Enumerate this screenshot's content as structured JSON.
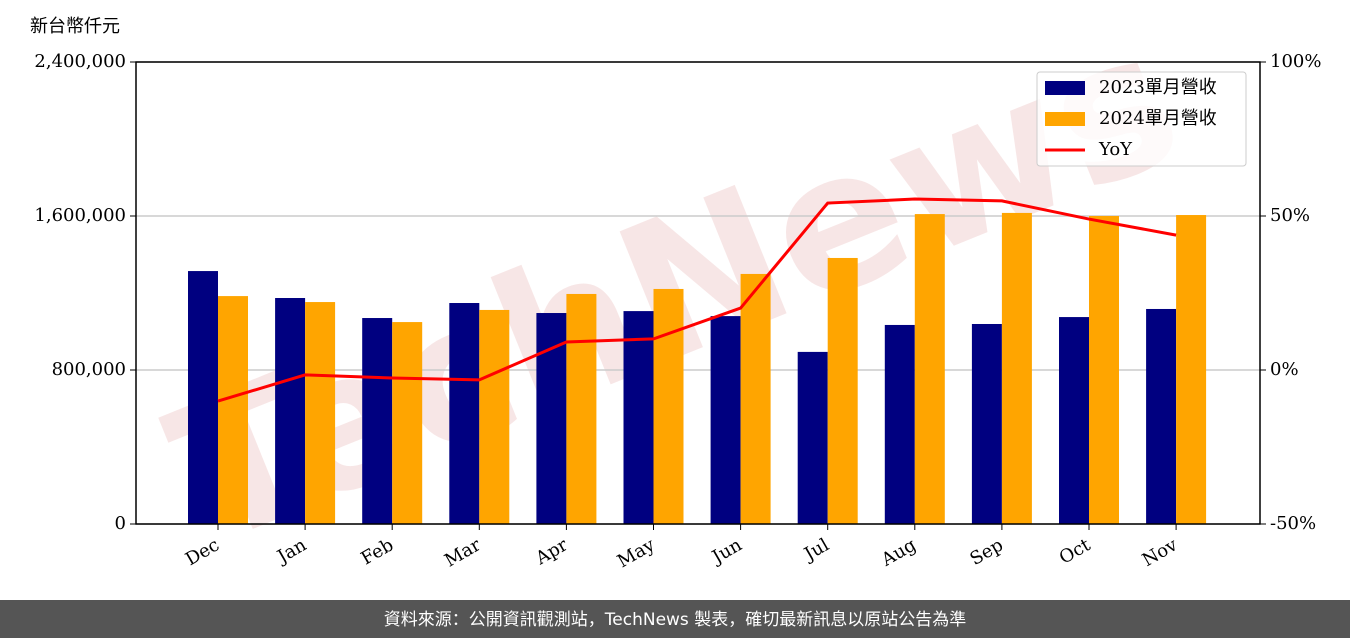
{
  "chart_data": {
    "type": "bar_line",
    "y_label": "新台幣仟元",
    "categories": [
      "Dec",
      "Jan",
      "Feb",
      "Mar",
      "Apr",
      "May",
      "Jun",
      "Jul",
      "Aug",
      "Sep",
      "Oct",
      "Nov"
    ],
    "series": [
      {
        "name": "2023單月營收",
        "type": "bar",
        "color": "#000080",
        "values": [
          1314000,
          1174000,
          1070000,
          1148000,
          1096000,
          1106000,
          1080000,
          894000,
          1034000,
          1039000,
          1075000,
          1117000
        ]
      },
      {
        "name": "2024單月營收",
        "type": "bar",
        "color": "#ffa500",
        "values": [
          1184000,
          1153000,
          1049000,
          1112000,
          1195000,
          1221000,
          1299000,
          1382000,
          1610000,
          1616000,
          1600000,
          1605000
        ]
      },
      {
        "name": "YoY",
        "type": "line",
        "axis": "y2",
        "color": "#ff0000",
        "values": [
          -10.1,
          -1.6,
          -2.6,
          -3.2,
          9.1,
          10.1,
          20.1,
          54.2,
          55.5,
          54.9,
          49.0,
          43.8
        ]
      }
    ],
    "ylim": [
      0,
      2400000
    ],
    "yticks": [
      0,
      {
        "value": 800000,
        "label": "800,000"
      },
      {
        "value": 1600000,
        "label": "1,600,000"
      },
      {
        "value": 2400000,
        "label": "2,400,000"
      }
    ],
    "y2lim": [
      -50,
      100
    ],
    "y2ticks": [
      {
        "value": -50,
        "label": "-50%"
      },
      {
        "value": 0,
        "label": "0%"
      },
      {
        "value": 50,
        "label": "50%"
      },
      {
        "value": 100,
        "label": "100%"
      }
    ],
    "grid": true,
    "legend": "upper right",
    "watermark": "TechNews",
    "footer": "資料來源：公開資訊觀測站，TechNews 製表，確切最新訊息以原站公告為準"
  }
}
